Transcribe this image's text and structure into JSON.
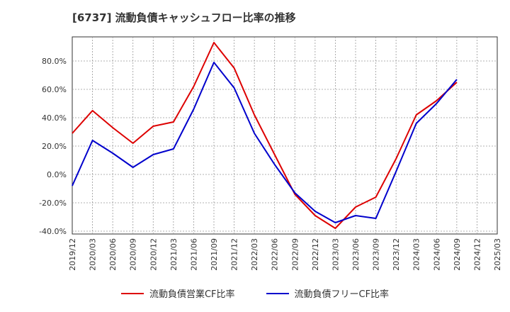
{
  "title": "[6737]  流動負債キャッシュフロー比率の推移",
  "chart_data": {
    "type": "line",
    "title": "[6737]  流動負債キャッシュフロー比率の推移",
    "x_ticks": [
      "2019/12",
      "2020/03",
      "2020/06",
      "2020/09",
      "2020/12",
      "2021/03",
      "2021/06",
      "2021/09",
      "2021/12",
      "2022/03",
      "2022/06",
      "2022/09",
      "2022/12",
      "2023/03",
      "2023/06",
      "2023/09",
      "2023/12",
      "2024/03",
      "2024/06",
      "2024/09",
      "2024/12",
      "2025/03"
    ],
    "y_ticks": [
      -40,
      -20,
      0,
      20,
      40,
      60,
      80
    ],
    "y_tick_labels": [
      "-40.0%",
      "-20.0%",
      "0.0%",
      "20.0%",
      "40.0%",
      "60.0%",
      "80.0%"
    ],
    "ylim": [
      -42,
      97
    ],
    "grid": true,
    "legend_position": "bottom",
    "series": [
      {
        "name": "流動負債営業CF比率",
        "color": "#dd0000",
        "values": [
          29,
          45,
          33,
          22,
          34,
          37,
          62,
          93,
          75,
          42,
          14,
          -14,
          -29,
          -38,
          -23,
          -16,
          11,
          42,
          52,
          65,
          null,
          null
        ]
      },
      {
        "name": "流動負債フリーCF比率",
        "color": "#0000cc",
        "values": [
          -8,
          24,
          15,
          5,
          14,
          18,
          46,
          79,
          61,
          29,
          7,
          -13,
          -26,
          -34,
          -29,
          -31,
          2,
          36,
          50,
          67,
          null,
          null
        ]
      }
    ]
  }
}
